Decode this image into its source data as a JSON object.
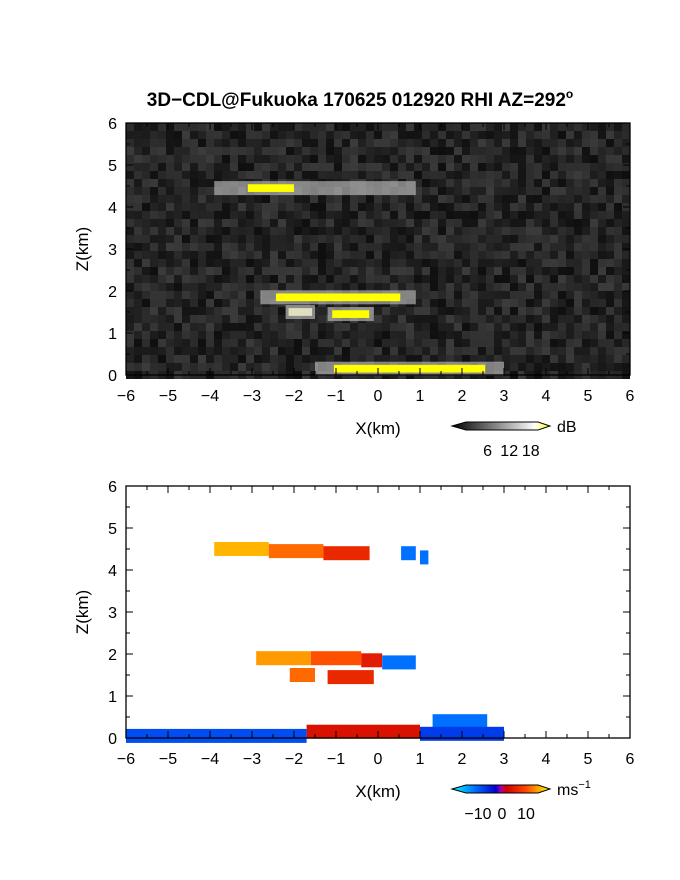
{
  "title": {
    "main": "3D−CDL@Fukuoka 170625 012920 RHI AZ=292",
    "sup": "o"
  },
  "chart_data": [
    {
      "type": "heatmap",
      "name": "intensity",
      "xlabel": "X(km)",
      "ylabel": "Z(km)",
      "xlim": [
        -6,
        6
      ],
      "ylim": [
        0,
        6
      ],
      "x_ticks": [
        "−6",
        "−5",
        "−4",
        "−3",
        "−2",
        "−1",
        "0",
        "1",
        "2",
        "3",
        "4",
        "5",
        "6"
      ],
      "y_ticks": [
        "0",
        "1",
        "2",
        "3",
        "4",
        "5",
        "6"
      ],
      "background": "noise",
      "colorbar": {
        "unit": "dB",
        "ticks": [
          "6",
          "12",
          "18"
        ],
        "range": [
          0,
          20
        ]
      },
      "features": [
        {
          "x": [
            -3.9,
            0.9
          ],
          "z": 4.45,
          "intensity": "high",
          "core": [
            -3.1,
            -2.0
          ]
        },
        {
          "x": [
            -2.8,
            0.9
          ],
          "z": 1.85,
          "intensity": "high"
        },
        {
          "x": [
            -2.2,
            -1.5
          ],
          "z": 1.5,
          "intensity": "medium"
        },
        {
          "x": [
            -1.2,
            -0.1
          ],
          "z": 1.45,
          "intensity": "high"
        },
        {
          "x": [
            -1.5,
            3.0
          ],
          "z": 0.15,
          "intensity": "high"
        }
      ]
    },
    {
      "type": "heatmap",
      "name": "velocity",
      "xlabel": "X(km)",
      "ylabel": "Z(km)",
      "xlim": [
        -6,
        6
      ],
      "ylim": [
        0,
        6
      ],
      "x_ticks": [
        "−6",
        "−5",
        "−4",
        "−3",
        "−2",
        "−1",
        "0",
        "1",
        "2",
        "3",
        "4",
        "5",
        "6"
      ],
      "y_ticks": [
        "0",
        "1",
        "2",
        "3",
        "4",
        "5",
        "6"
      ],
      "colorbar": {
        "unit": "ms",
        "unit_sup": "−1",
        "ticks": [
          "−10",
          "0",
          "10"
        ],
        "range": [
          -15,
          15
        ]
      },
      "features": [
        {
          "x": [
            -3.9,
            -2.6
          ],
          "z": 4.5,
          "velocity": 12
        },
        {
          "x": [
            -2.6,
            -1.3
          ],
          "z": 4.45,
          "velocity": 9
        },
        {
          "x": [
            -1.3,
            -0.2
          ],
          "z": 4.4,
          "velocity": 5
        },
        {
          "x": [
            0.55,
            0.9
          ],
          "z": 4.4,
          "velocity": -8
        },
        {
          "x": [
            1.0,
            1.2
          ],
          "z": 4.3,
          "velocity": -8
        },
        {
          "x": [
            -2.9,
            -1.6
          ],
          "z": 1.9,
          "velocity": 11
        },
        {
          "x": [
            -1.6,
            -0.4
          ],
          "z": 1.9,
          "velocity": 8
        },
        {
          "x": [
            -0.4,
            0.1
          ],
          "z": 1.85,
          "velocity": 4
        },
        {
          "x": [
            0.1,
            0.9
          ],
          "z": 1.8,
          "velocity": -8
        },
        {
          "x": [
            -2.1,
            -1.5
          ],
          "z": 1.5,
          "velocity": 9
        },
        {
          "x": [
            -1.2,
            -0.1
          ],
          "z": 1.45,
          "velocity": 5
        },
        {
          "x": [
            1.3,
            2.6
          ],
          "z": 0.4,
          "velocity": -8
        },
        {
          "x": [
            -1.7,
            1.0
          ],
          "z": 0.15,
          "velocity": 3
        },
        {
          "x": [
            1.0,
            3.0
          ],
          "z": 0.1,
          "velocity": -5
        },
        {
          "x": [
            -6.0,
            -1.7
          ],
          "z": 0.05,
          "velocity": -6
        }
      ]
    }
  ]
}
